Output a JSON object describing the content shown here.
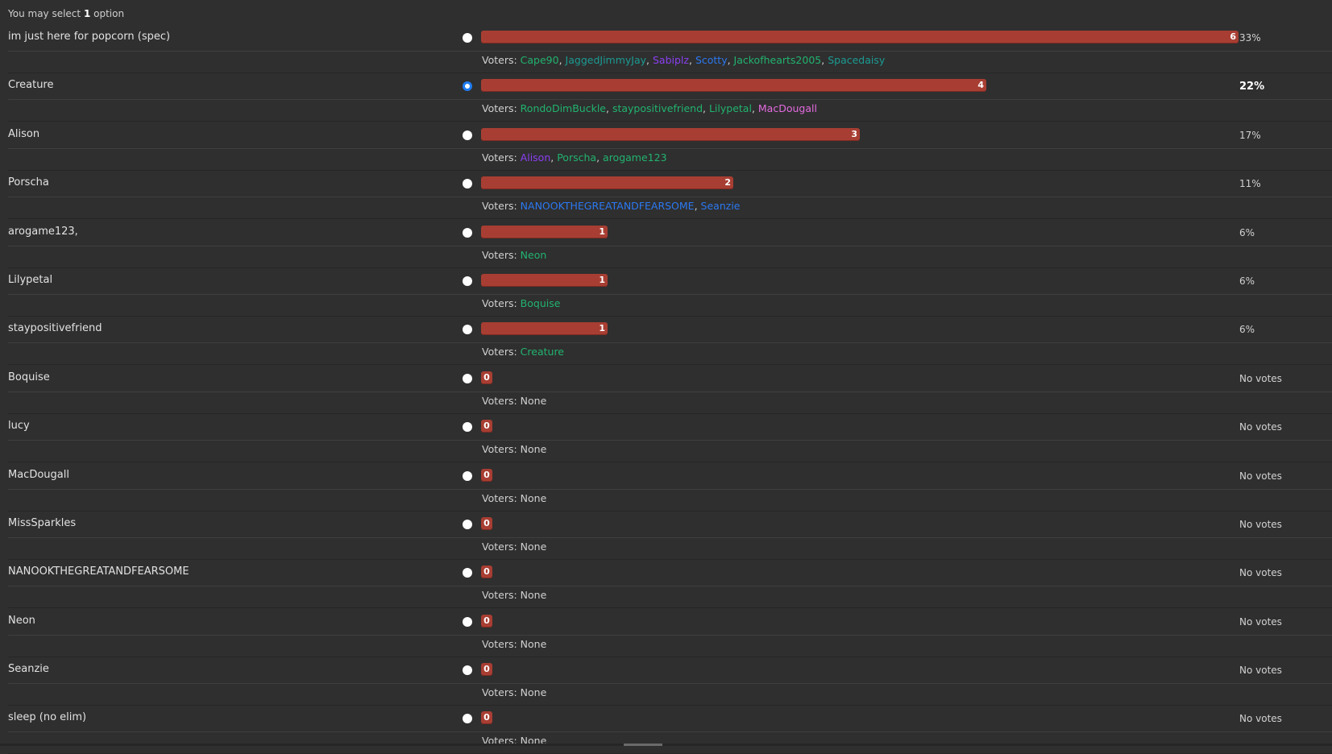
{
  "header": {
    "prefix": "You may select",
    "count": "1",
    "suffix": "option"
  },
  "voters_label": "Voters:",
  "options": [
    {
      "name": "im just here for popcorn (spec)",
      "votes": 6,
      "share": 1.0,
      "percent": "33%",
      "selected": false,
      "voters": [
        {
          "name": "Cape90",
          "color": "#21b36f"
        },
        {
          "name": "JaggedJimmyJay",
          "color": "#1b9b93"
        },
        {
          "name": "Sabiplz",
          "color": "#8a3ff2"
        },
        {
          "name": "Scotty",
          "color": "#2b78f0"
        },
        {
          "name": "Jackofhearts2005",
          "color": "#21b36f"
        },
        {
          "name": "Spacedaisy",
          "color": "#1b9b93"
        }
      ]
    },
    {
      "name": "Creature",
      "votes": 4,
      "share": 0.667,
      "percent": "22%",
      "selected": true,
      "voters": [
        {
          "name": "RondoDimBuckle",
          "color": "#21b36f"
        },
        {
          "name": "staypositivefriend",
          "color": "#21b36f"
        },
        {
          "name": "Lilypetal",
          "color": "#21b36f"
        },
        {
          "name": "MacDougall",
          "color": "#e46be0"
        }
      ]
    },
    {
      "name": "Alison",
      "votes": 3,
      "share": 0.5,
      "percent": "17%",
      "selected": false,
      "voters": [
        {
          "name": "Alison",
          "color": "#8a3ff2"
        },
        {
          "name": "Porscha",
          "color": "#21b36f"
        },
        {
          "name": "arogame123",
          "color": "#21b36f"
        }
      ]
    },
    {
      "name": "Porscha",
      "votes": 2,
      "share": 0.333,
      "percent": "11%",
      "selected": false,
      "voters": [
        {
          "name": "NANOOKTHEGREATANDFEARSOME",
          "color": "#2b78f0"
        },
        {
          "name": "Seanzie",
          "color": "#2b78f0"
        }
      ]
    },
    {
      "name": "arogame123,",
      "votes": 1,
      "share": 0.167,
      "percent": "6%",
      "selected": false,
      "voters": [
        {
          "name": "Neon",
          "color": "#21b36f"
        }
      ]
    },
    {
      "name": "Lilypetal",
      "votes": 1,
      "share": 0.167,
      "percent": "6%",
      "selected": false,
      "voters": [
        {
          "name": "Boquise",
          "color": "#21b36f"
        }
      ]
    },
    {
      "name": "staypositivefriend",
      "votes": 1,
      "share": 0.167,
      "percent": "6%",
      "selected": false,
      "voters": [
        {
          "name": "Creature",
          "color": "#21b36f"
        }
      ]
    },
    {
      "name": "Boquise",
      "votes": 0,
      "share": 0,
      "percent": "No votes",
      "selected": false,
      "none_text": "None",
      "voters": []
    },
    {
      "name": "lucy",
      "votes": 0,
      "share": 0,
      "percent": "No votes",
      "selected": false,
      "none_text": "None",
      "voters": []
    },
    {
      "name": "MacDougall",
      "votes": 0,
      "share": 0,
      "percent": "No votes",
      "selected": false,
      "none_text": "None",
      "voters": []
    },
    {
      "name": "MissSparkles",
      "votes": 0,
      "share": 0,
      "percent": "No votes",
      "selected": false,
      "none_text": "None",
      "voters": []
    },
    {
      "name": "NANOOKTHEGREATANDFEARSOME",
      "votes": 0,
      "share": 0,
      "percent": "No votes",
      "selected": false,
      "none_text": "None",
      "voters": []
    },
    {
      "name": "Neon",
      "votes": 0,
      "share": 0,
      "percent": "No votes",
      "selected": false,
      "none_text": "None",
      "voters": []
    },
    {
      "name": "Seanzie",
      "votes": 0,
      "share": 0,
      "percent": "No votes",
      "selected": false,
      "none_text": "None",
      "voters": []
    },
    {
      "name": "sleep (no elim)",
      "votes": 0,
      "share": 0,
      "percent": "No votes",
      "selected": false,
      "none_text": "None",
      "voters": []
    }
  ]
}
